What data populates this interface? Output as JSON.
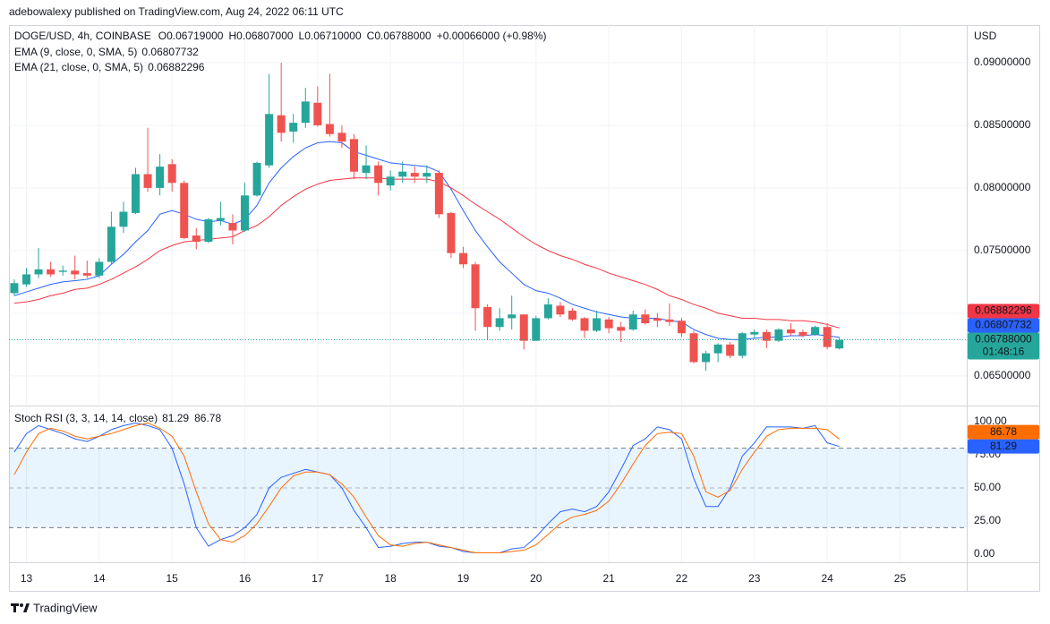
{
  "header": {
    "byline": "adebowalexy published on TradingView.com, Aug 24, 2022 06:11 UTC"
  },
  "footer": {
    "brand": "TradingView"
  },
  "chart_data": [
    {
      "type": "candlestick",
      "symbol": "DOGE/USD, 4h, COINBASE",
      "ohlc_legend": [
        {
          "key": "O",
          "value": "0.06719000"
        },
        {
          "key": "H",
          "value": "0.06807000"
        },
        {
          "key": "L",
          "value": "0.06710000"
        },
        {
          "key": "C",
          "value": "0.06788000"
        }
      ],
      "change": "+0.00066000 (+0.98%)",
      "y_unit": "USD",
      "x": [
        0,
        1,
        2,
        3,
        4,
        5,
        6,
        7,
        8,
        9,
        10,
        11,
        12,
        13,
        14,
        15,
        16,
        17,
        18,
        19,
        20,
        21,
        22,
        23,
        24,
        25,
        26,
        27,
        28,
        29,
        30,
        31,
        32,
        33,
        34,
        35,
        36,
        37,
        38,
        39,
        40,
        41,
        42,
        43,
        44,
        45,
        46,
        47,
        48,
        49,
        50,
        51,
        52,
        53,
        54,
        55,
        56,
        57,
        58,
        59,
        60,
        61,
        62,
        63,
        64,
        65,
        66,
        67,
        68
      ],
      "xlim": [
        -0.44,
        78.5
      ],
      "xticks": [
        {
          "value": 1,
          "label": "13"
        },
        {
          "value": 7,
          "label": "14"
        },
        {
          "value": 13,
          "label": "15"
        },
        {
          "value": 19,
          "label": "16"
        },
        {
          "value": 25,
          "label": "17"
        },
        {
          "value": 31,
          "label": "18"
        },
        {
          "value": 37,
          "label": "19"
        },
        {
          "value": 43,
          "label": "20"
        },
        {
          "value": 49,
          "label": "21"
        },
        {
          "value": 55,
          "label": "22"
        },
        {
          "value": 61,
          "label": "23"
        },
        {
          "value": 67,
          "label": "24"
        },
        {
          "value": 73,
          "label": "25"
        }
      ],
      "open": [
        0.0716,
        0.0723,
        0.0731,
        0.0735,
        0.0733,
        0.0734,
        0.0732,
        0.073,
        0.0741,
        0.0769,
        0.078,
        0.0811,
        0.08,
        0.0819,
        0.0804,
        0.0762,
        0.0757,
        0.0774,
        0.0772,
        0.0766,
        0.0794,
        0.0818,
        0.0858,
        0.0845,
        0.0852,
        0.0868,
        0.0851,
        0.0844,
        0.0839,
        0.0812,
        0.0818,
        0.0802,
        0.0809,
        0.0812,
        0.0809,
        0.0812,
        0.078,
        0.0748,
        0.0739,
        0.0705,
        0.0689,
        0.0696,
        0.0699,
        0.0678,
        0.0696,
        0.0706,
        0.0702,
        0.0696,
        0.0686,
        0.0695,
        0.0689,
        0.0687,
        0.0699,
        0.0696,
        0.0695,
        0.0694,
        0.0684,
        0.0661,
        0.0668,
        0.0675,
        0.0666,
        0.0683,
        0.0685,
        0.0678,
        0.0687,
        0.0685,
        0.0683,
        0.0689,
        0.06719
      ],
      "high": [
        0.0727,
        0.0736,
        0.0752,
        0.0741,
        0.0738,
        0.0746,
        0.0742,
        0.0744,
        0.0781,
        0.0789,
        0.0816,
        0.0848,
        0.0827,
        0.0823,
        0.0806,
        0.0768,
        0.0776,
        0.0789,
        0.0779,
        0.0804,
        0.0821,
        0.0891,
        0.09,
        0.0859,
        0.088,
        0.0881,
        0.0891,
        0.085,
        0.0843,
        0.0834,
        0.0821,
        0.0814,
        0.0821,
        0.0817,
        0.0818,
        0.0814,
        0.0781,
        0.0753,
        0.0741,
        0.0707,
        0.0704,
        0.0714,
        0.0699,
        0.0698,
        0.0712,
        0.0709,
        0.0704,
        0.0697,
        0.0702,
        0.0697,
        0.0693,
        0.0702,
        0.0703,
        0.07,
        0.0708,
        0.0696,
        0.0686,
        0.067,
        0.0676,
        0.0677,
        0.0685,
        0.0687,
        0.0687,
        0.0688,
        0.0692,
        0.0687,
        0.069,
        0.0692,
        0.06807
      ],
      "low": [
        0.0714,
        0.0721,
        0.0728,
        0.0729,
        0.073,
        0.0727,
        0.0728,
        0.0728,
        0.0739,
        0.0764,
        0.0779,
        0.0797,
        0.0794,
        0.0797,
        0.0759,
        0.0751,
        0.0756,
        0.077,
        0.0755,
        0.0765,
        0.0793,
        0.0816,
        0.0837,
        0.0836,
        0.0848,
        0.0849,
        0.0841,
        0.0832,
        0.0807,
        0.0807,
        0.0794,
        0.0798,
        0.0804,
        0.0804,
        0.0804,
        0.0776,
        0.0744,
        0.0736,
        0.0686,
        0.0679,
        0.0686,
        0.0687,
        0.0671,
        0.0678,
        0.0695,
        0.0697,
        0.0694,
        0.068,
        0.0685,
        0.0684,
        0.0677,
        0.0686,
        0.0691,
        0.0689,
        0.069,
        0.0681,
        0.066,
        0.0654,
        0.0661,
        0.0664,
        0.0664,
        0.068,
        0.0672,
        0.0677,
        0.0682,
        0.0681,
        0.0682,
        0.0671,
        0.0671
      ],
      "close": [
        0.0724,
        0.0731,
        0.0735,
        0.0731,
        0.0734,
        0.0731,
        0.073,
        0.0741,
        0.0769,
        0.0781,
        0.0811,
        0.08,
        0.0817,
        0.0804,
        0.076,
        0.0757,
        0.0775,
        0.0776,
        0.0766,
        0.0794,
        0.082,
        0.0859,
        0.0844,
        0.0852,
        0.0869,
        0.085,
        0.0843,
        0.0837,
        0.0813,
        0.0818,
        0.0804,
        0.0809,
        0.0813,
        0.0809,
        0.0812,
        0.0779,
        0.0748,
        0.0739,
        0.0704,
        0.0689,
        0.0696,
        0.0699,
        0.0678,
        0.0696,
        0.0707,
        0.0699,
        0.0695,
        0.0686,
        0.0696,
        0.0688,
        0.0686,
        0.0699,
        0.0692,
        0.0694,
        0.0693,
        0.0684,
        0.0661,
        0.0668,
        0.0675,
        0.0666,
        0.0684,
        0.0685,
        0.0678,
        0.0687,
        0.0684,
        0.0682,
        0.0689,
        0.0673,
        0.06788
      ],
      "up_color": "#26a69a",
      "down_color": "#ef5350",
      "series": [
        {
          "name": "EMA (9, close, 0, SMA, 5)",
          "color": "#2962ff",
          "values": [
            0.0714,
            0.0717,
            0.072,
            0.0723,
            0.0725,
            0.0726,
            0.0727,
            0.073,
            0.0739,
            0.0747,
            0.0757,
            0.0766,
            0.0779,
            0.0782,
            0.0779,
            0.0775,
            0.0773,
            0.0774,
            0.0771,
            0.0775,
            0.0786,
            0.0804,
            0.0816,
            0.0825,
            0.0832,
            0.0836,
            0.0837,
            0.0836,
            0.0829,
            0.0826,
            0.0823,
            0.082,
            0.0819,
            0.0818,
            0.0817,
            0.0813,
            0.0799,
            0.0782,
            0.0766,
            0.0753,
            0.0741,
            0.0732,
            0.0723,
            0.0718,
            0.0716,
            0.0712,
            0.0707,
            0.0704,
            0.0701,
            0.0699,
            0.0697,
            0.0696,
            0.0696,
            0.0696,
            0.0694,
            0.0693,
            0.0687,
            0.0683,
            0.068,
            0.0679,
            0.0679,
            0.068,
            0.0681,
            0.0681,
            0.0682,
            0.0682,
            0.0683,
            0.0682,
            0.06807732
          ]
        },
        {
          "name": "EMA (21, close, 0, SMA, 5)",
          "color": "#f23645",
          "values": [
            0.0708,
            0.0709,
            0.0711,
            0.0714,
            0.0716,
            0.0719,
            0.072,
            0.0723,
            0.0727,
            0.0732,
            0.0737,
            0.0743,
            0.075,
            0.0754,
            0.0757,
            0.0758,
            0.0759,
            0.076,
            0.0761,
            0.0766,
            0.077,
            0.0777,
            0.0786,
            0.0793,
            0.0799,
            0.0803,
            0.0806,
            0.0807,
            0.0808,
            0.0808,
            0.0808,
            0.0807,
            0.0807,
            0.0807,
            0.0807,
            0.0805,
            0.08,
            0.0794,
            0.0787,
            0.0781,
            0.0775,
            0.0768,
            0.0761,
            0.0755,
            0.075,
            0.0746,
            0.0743,
            0.0739,
            0.0736,
            0.0732,
            0.0729,
            0.0726,
            0.0723,
            0.0719,
            0.0714,
            0.0711,
            0.0707,
            0.0704,
            0.07,
            0.0698,
            0.0696,
            0.0696,
            0.0695,
            0.0695,
            0.0694,
            0.0694,
            0.0693,
            0.0691,
            0.06882296
          ]
        }
      ],
      "ylim": [
        0.0627,
        0.093
      ],
      "yticks": [
        {
          "value": 0.065,
          "label": "0.06500000"
        },
        {
          "value": 0.07,
          "label": "0.07000000"
        },
        {
          "value": 0.075,
          "label": "0.07500000"
        },
        {
          "value": 0.08,
          "label": "0.08000000"
        },
        {
          "value": 0.085,
          "label": "0.08500000"
        },
        {
          "value": 0.09,
          "label": "0.09000000"
        }
      ],
      "last_price_label": "0.06788000",
      "countdown": "01:48:16",
      "grid": true
    },
    {
      "type": "line",
      "name": "Stoch RSI (3, 3, 14, 14, close)",
      "x": [
        0,
        1,
        2,
        3,
        4,
        5,
        6,
        7,
        8,
        9,
        10,
        11,
        12,
        13,
        14,
        15,
        16,
        17,
        18,
        19,
        20,
        21,
        22,
        23,
        24,
        25,
        26,
        27,
        28,
        29,
        30,
        31,
        32,
        33,
        34,
        35,
        36,
        37,
        38,
        39,
        40,
        41,
        42,
        43,
        44,
        45,
        46,
        47,
        48,
        49,
        50,
        51,
        52,
        53,
        54,
        55,
        56,
        57,
        58,
        59,
        60,
        61,
        62,
        63,
        64,
        65,
        66,
        67,
        68
      ],
      "xlim": [
        -0.44,
        78.5
      ],
      "series": [
        {
          "color": "#2962ff",
          "values": [
            77,
            91,
            97,
            94,
            91,
            87,
            85,
            89,
            94,
            97,
            99,
            97,
            94,
            80,
            53,
            20,
            6,
            11,
            14,
            20,
            30,
            50,
            58,
            61,
            64,
            62,
            60,
            50,
            33,
            20,
            5,
            6,
            8,
            9,
            9,
            6,
            5,
            2,
            1,
            1,
            1,
            4,
            5,
            13,
            23,
            32,
            34,
            32,
            36,
            47,
            64,
            82,
            87,
            96,
            94,
            87,
            57,
            36,
            36,
            50,
            74,
            84,
            96,
            96,
            96,
            95,
            97,
            84,
            81.29
          ]
        },
        {
          "color": "#ff6d00",
          "values": [
            60,
            77,
            91,
            95,
            93,
            89,
            87,
            89,
            91,
            94,
            97,
            99,
            95,
            89,
            74,
            47,
            23,
            11,
            9,
            14,
            23,
            36,
            50,
            59,
            62,
            62,
            60,
            53,
            43,
            28,
            14,
            7,
            6,
            8,
            9,
            7,
            5,
            3,
            1,
            1,
            1,
            2,
            3,
            7,
            15,
            23,
            28,
            30,
            33,
            40,
            53,
            68,
            82,
            91,
            92,
            91,
            74,
            47,
            43,
            48,
            64,
            77,
            89,
            94,
            95,
            95,
            95,
            94,
            86.78
          ]
        }
      ],
      "ylim": [
        -6.1,
        110.8
      ],
      "yticks": [
        {
          "value": 0,
          "label": "0.00"
        },
        {
          "value": 25,
          "label": "25.00"
        },
        {
          "value": 50,
          "label": "50.00"
        },
        {
          "value": 75,
          "label": "75.00"
        },
        {
          "value": 100,
          "label": "100.00"
        }
      ],
      "band": [
        20,
        80
      ],
      "midline": 50,
      "band_color": "#2196f3"
    }
  ]
}
